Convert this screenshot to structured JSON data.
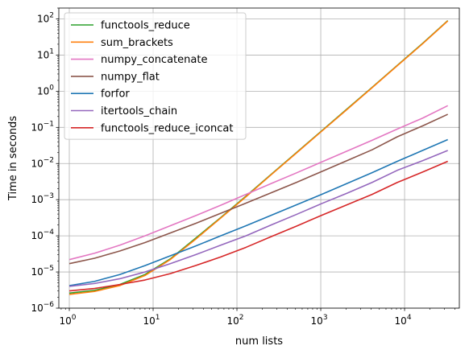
{
  "chart_data": {
    "type": "line",
    "xlabel": "num lists",
    "ylabel": "Time in seconds",
    "xscale": "log",
    "yscale": "log",
    "xlim": [
      0.75,
      45000
    ],
    "ylim": [
      1e-06,
      200
    ],
    "grid": true,
    "legend_position": "top-left",
    "x_ticks": [
      {
        "value": 1,
        "base": "10",
        "exp": "0"
      },
      {
        "value": 10,
        "base": "10",
        "exp": "1"
      },
      {
        "value": 100,
        "base": "10",
        "exp": "2"
      },
      {
        "value": 1000,
        "base": "10",
        "exp": "3"
      },
      {
        "value": 10000,
        "base": "10",
        "exp": "4"
      }
    ],
    "y_ticks": [
      {
        "value": 1e-06,
        "base": "10",
        "exp": "−6"
      },
      {
        "value": 1e-05,
        "base": "10",
        "exp": "−5"
      },
      {
        "value": 0.0001,
        "base": "10",
        "exp": "−4"
      },
      {
        "value": 0.001,
        "base": "10",
        "exp": "−3"
      },
      {
        "value": 0.01,
        "base": "10",
        "exp": "−2"
      },
      {
        "value": 0.1,
        "base": "10",
        "exp": "−1"
      },
      {
        "value": 1,
        "base": "10",
        "exp": "0"
      },
      {
        "value": 10,
        "base": "10",
        "exp": "1"
      },
      {
        "value": 100,
        "base": "10",
        "exp": "2"
      }
    ],
    "x": [
      1,
      2,
      4,
      8,
      16,
      32,
      64,
      128,
      256,
      512,
      1024,
      2048,
      4096,
      8192,
      16384,
      32768
    ],
    "series": [
      {
        "name": "functools_reduce",
        "color": "#2ca02c",
        "values": [
          2.6e-06,
          3.1e-06,
          4.5e-06,
          8.5e-06,
          2.3e-05,
          8.5e-05,
          0.00032,
          0.00125,
          0.005,
          0.02,
          0.08,
          0.32,
          1.28,
          5.2,
          21,
          90
        ]
      },
      {
        "name": "sum_brackets",
        "color": "#ff7f0e",
        "values": [
          2.4e-06,
          2.9e-06,
          4.2e-06,
          8e-06,
          2.2e-05,
          8e-05,
          0.00031,
          0.0012,
          0.0049,
          0.0195,
          0.078,
          0.31,
          1.25,
          5.1,
          20.5,
          88
        ]
      },
      {
        "name": "numpy_concatenate",
        "color": "#e377c2",
        "values": [
          2.2e-05,
          3.3e-05,
          5.5e-05,
          0.0001,
          0.00019,
          0.00036,
          0.0007,
          0.0014,
          0.0028,
          0.0055,
          0.011,
          0.022,
          0.044,
          0.09,
          0.18,
          0.4
        ]
      },
      {
        "name": "numpy_flat",
        "color": "#8c564b",
        "values": [
          1.7e-05,
          2.4e-05,
          3.8e-05,
          6.5e-05,
          0.00012,
          0.00022,
          0.00042,
          0.0008,
          0.00155,
          0.003,
          0.006,
          0.012,
          0.024,
          0.055,
          0.11,
          0.23
        ]
      },
      {
        "name": "forfor",
        "color": "#1f77b4",
        "values": [
          4.2e-06,
          5.5e-06,
          8.5e-06,
          1.5e-05,
          2.8e-05,
          5.2e-05,
          0.0001,
          0.00019,
          0.00037,
          0.00072,
          0.0014,
          0.0028,
          0.0056,
          0.0115,
          0.023,
          0.046
        ]
      },
      {
        "name": "itertools_chain",
        "color": "#9467bd",
        "values": [
          4e-06,
          4.8e-06,
          6.5e-06,
          1e-05,
          1.7e-05,
          3e-05,
          5.5e-05,
          0.0001,
          0.0002,
          0.00039,
          0.00078,
          0.0015,
          0.003,
          0.0065,
          0.012,
          0.023
        ]
      },
      {
        "name": "functools_reduce_iconcat",
        "color": "#d62728",
        "values": [
          3e-06,
          3.5e-06,
          4.5e-06,
          6e-06,
          9e-06,
          1.5e-05,
          2.6e-05,
          4.8e-05,
          9.5e-05,
          0.000185,
          0.00037,
          0.00072,
          0.0014,
          0.003,
          0.0058,
          0.0115
        ]
      }
    ]
  }
}
